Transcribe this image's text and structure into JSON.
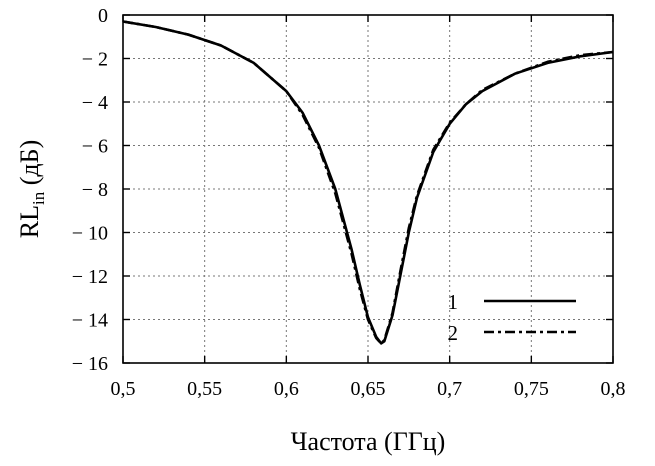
{
  "chart_data": {
    "type": "line",
    "xlabel": "Частота (ГГц)",
    "ylabel": {
      "main": "RL",
      "sub": "in",
      "unit": " (дБ)"
    },
    "xlim": [
      0.5,
      0.8
    ],
    "ylim": [
      -16,
      0
    ],
    "grid": true,
    "legend_position": "bottom-right",
    "x_ticks": [
      {
        "value": 0.5,
        "label": "0,5"
      },
      {
        "value": 0.55,
        "label": "0,55"
      },
      {
        "value": 0.6,
        "label": "0,6"
      },
      {
        "value": 0.65,
        "label": "0,65"
      },
      {
        "value": 0.7,
        "label": "0,7"
      },
      {
        "value": 0.75,
        "label": "0,75"
      },
      {
        "value": 0.8,
        "label": "0,8"
      }
    ],
    "y_ticks": [
      {
        "value": 0,
        "label": "0"
      },
      {
        "value": -2,
        "label": "− 2"
      },
      {
        "value": -4,
        "label": "− 4"
      },
      {
        "value": -6,
        "label": "− 6"
      },
      {
        "value": -8,
        "label": "− 8"
      },
      {
        "value": -10,
        "label": "− 10"
      },
      {
        "value": -12,
        "label": "− 12"
      },
      {
        "value": -14,
        "label": "− 14"
      },
      {
        "value": -16,
        "label": "− 16"
      }
    ],
    "series": [
      {
        "name": "1",
        "style": "solid",
        "color": "#000000",
        "x": [
          0.5,
          0.52,
          0.54,
          0.56,
          0.58,
          0.6,
          0.61,
          0.62,
          0.63,
          0.64,
          0.645,
          0.65,
          0.655,
          0.658,
          0.66,
          0.665,
          0.67,
          0.675,
          0.68,
          0.69,
          0.7,
          0.71,
          0.72,
          0.74,
          0.76,
          0.78,
          0.8
        ],
        "y": [
          -0.3,
          -0.55,
          -0.9,
          -1.4,
          -2.2,
          -3.5,
          -4.5,
          -6.0,
          -8.0,
          -10.8,
          -12.4,
          -13.9,
          -14.8,
          -15.1,
          -15.0,
          -13.8,
          -11.9,
          -10.0,
          -8.4,
          -6.3,
          -5.0,
          -4.1,
          -3.5,
          -2.7,
          -2.2,
          -1.9,
          -1.7
        ]
      },
      {
        "name": "2",
        "style": "dash-dot",
        "color": "#000000",
        "x": [
          0.5,
          0.52,
          0.54,
          0.56,
          0.58,
          0.6,
          0.61,
          0.62,
          0.63,
          0.64,
          0.645,
          0.65,
          0.655,
          0.658,
          0.66,
          0.665,
          0.67,
          0.675,
          0.68,
          0.69,
          0.7,
          0.71,
          0.72,
          0.74,
          0.76,
          0.78,
          0.8
        ],
        "y": [
          -0.3,
          -0.55,
          -0.9,
          -1.4,
          -2.2,
          -3.5,
          -4.6,
          -6.1,
          -8.2,
          -11.0,
          -12.6,
          -14.0,
          -14.85,
          -15.1,
          -14.95,
          -13.7,
          -11.7,
          -9.8,
          -8.3,
          -6.2,
          -4.95,
          -4.1,
          -3.45,
          -2.7,
          -2.15,
          -1.85,
          -1.7
        ]
      }
    ]
  }
}
